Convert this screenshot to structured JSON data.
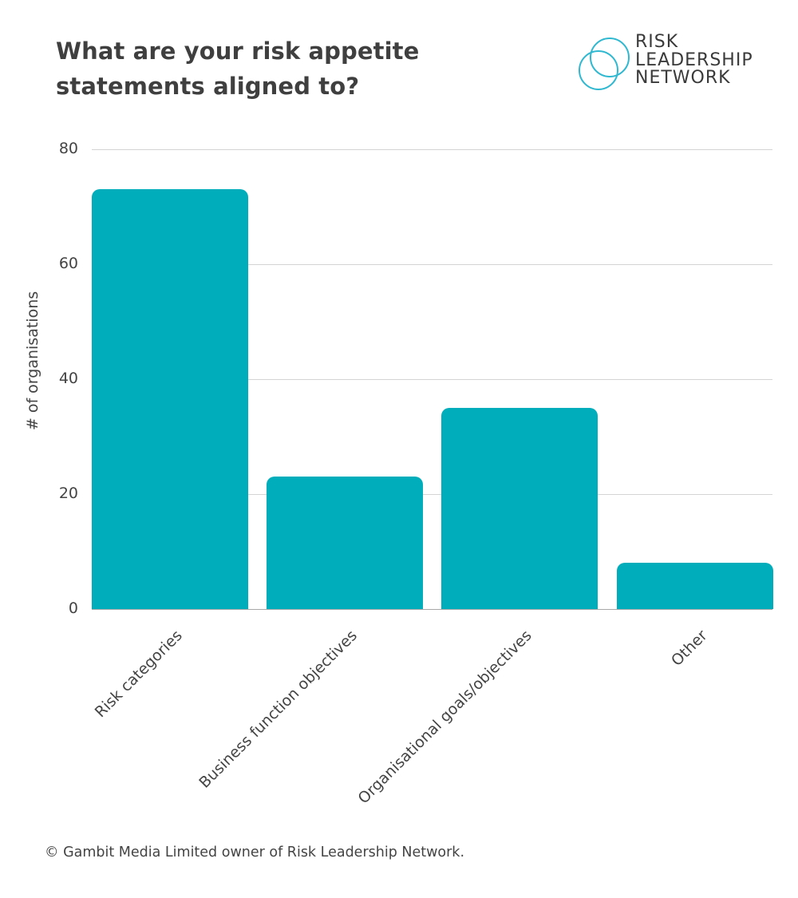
{
  "header": {
    "title": "What are your risk appetite statements aligned to?"
  },
  "logo": {
    "lines": [
      "RISK",
      "LEADERSHIP",
      "NETWORK"
    ],
    "ring_color": "#2fb8d0"
  },
  "footer": {
    "copyright": "© Gambit Media Limited owner of Risk Leadership Network."
  },
  "colors": {
    "bar": "#00adba",
    "grid": "#d4d4d4",
    "text": "#3f3f3f"
  },
  "axis": {
    "ylabel": "# of organisations",
    "yticks": [
      "0",
      "20",
      "40",
      "60",
      "80"
    ]
  },
  "chart_data": {
    "type": "bar",
    "title": "What are your risk appetite statements aligned to?",
    "categories": [
      "Risk categories",
      "Business function objectives",
      "Organisational goals/objectives",
      "Other"
    ],
    "values": [
      73,
      23,
      35,
      8
    ],
    "xlabel": "",
    "ylabel": "# of organisations",
    "ylim": [
      0,
      80
    ],
    "yticks": [
      0,
      20,
      40,
      60,
      80
    ],
    "grid": true,
    "legend": null
  }
}
